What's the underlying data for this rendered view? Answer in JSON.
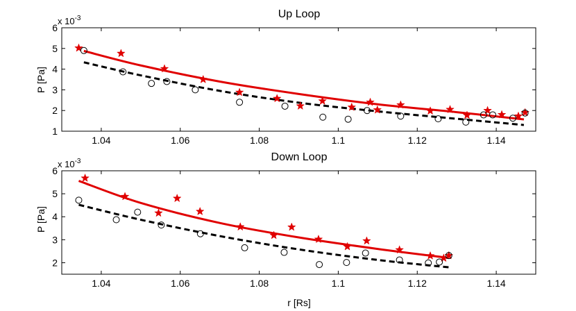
{
  "chart_data": [
    {
      "type": "scatter",
      "title": "Up Loop",
      "xlabel": "",
      "ylabel": "P [Pa]",
      "exponent_label": "x 10",
      "exponent_power": "-3",
      "xlim": [
        1.03,
        1.15
      ],
      "ylim": [
        1,
        6
      ],
      "xticks": [
        1.04,
        1.06,
        1.08,
        1.1,
        1.12,
        1.14
      ],
      "xtick_labels": [
        "1.04",
        "1.06",
        "1.08",
        "1.1",
        "1.12",
        "1.14"
      ],
      "yticks": [
        1,
        2,
        3,
        4,
        5,
        6
      ],
      "ytick_labels": [
        "1",
        "2",
        "3",
        "4",
        "5",
        "6"
      ],
      "series": [
        {
          "name": "stars",
          "marker": "star",
          "color": "#e00000",
          "points": [
            [
              1.0343,
              5.02
            ],
            [
              1.045,
              4.76
            ],
            [
              1.056,
              4.02
            ],
            [
              1.0658,
              3.5
            ],
            [
              1.075,
              2.88
            ],
            [
              1.0845,
              2.58
            ],
            [
              1.0904,
              2.22
            ],
            [
              1.096,
              2.46
            ],
            [
              1.1034,
              2.16
            ],
            [
              1.1081,
              2.4
            ],
            [
              1.1099,
              2.03
            ],
            [
              1.1158,
              2.27
            ],
            [
              1.1233,
              1.98
            ],
            [
              1.1283,
              2.05
            ],
            [
              1.1326,
              1.77
            ],
            [
              1.1378,
              2.0
            ],
            [
              1.1414,
              1.8
            ],
            [
              1.1456,
              1.73
            ],
            [
              1.1473,
              1.9
            ]
          ]
        },
        {
          "name": "circles",
          "marker": "circle",
          "color": "#000000",
          "points": [
            [
              1.0356,
              4.9
            ],
            [
              1.0455,
              3.87
            ],
            [
              1.0527,
              3.31
            ],
            [
              1.0566,
              3.4
            ],
            [
              1.0638,
              3.0
            ],
            [
              1.075,
              2.4
            ],
            [
              1.0865,
              2.21
            ],
            [
              1.0961,
              1.68
            ],
            [
              1.1025,
              1.58
            ],
            [
              1.1073,
              2.0
            ],
            [
              1.1158,
              1.73
            ],
            [
              1.1253,
              1.6
            ],
            [
              1.1323,
              1.44
            ],
            [
              1.1368,
              1.79
            ],
            [
              1.1391,
              1.79
            ],
            [
              1.1442,
              1.63
            ],
            [
              1.1473,
              1.88
            ]
          ]
        },
        {
          "name": "solid fit",
          "style": "solid",
          "color": "#e00000",
          "points": [
            [
              1.0356,
              4.88
            ],
            [
              1.05,
              4.18
            ],
            [
              1.07,
              3.4
            ],
            [
              1.09,
              2.8
            ],
            [
              1.11,
              2.3
            ],
            [
              1.13,
              1.92
            ],
            [
              1.147,
              1.57
            ]
          ]
        },
        {
          "name": "dashed fit",
          "style": "dashed",
          "color": "#000000",
          "points": [
            [
              1.0356,
              4.33
            ],
            [
              1.05,
              3.7
            ],
            [
              1.07,
              2.95
            ],
            [
              1.09,
              2.38
            ],
            [
              1.11,
              1.96
            ],
            [
              1.13,
              1.6
            ],
            [
              1.147,
              1.3
            ]
          ]
        }
      ]
    },
    {
      "type": "scatter",
      "title": "Down Loop",
      "xlabel": "r [Rs]",
      "ylabel": "P [Pa]",
      "exponent_label": "x 10",
      "exponent_power": "-3",
      "xlim": [
        1.03,
        1.15
      ],
      "ylim": [
        1.5,
        6
      ],
      "xticks": [
        1.04,
        1.06,
        1.08,
        1.1,
        1.12,
        1.14
      ],
      "xtick_labels": [
        "1.04",
        "1.06",
        "1.08",
        "1.1",
        "1.12",
        "1.14"
      ],
      "yticks": [
        2,
        3,
        4,
        5,
        6
      ],
      "ytick_labels": [
        "2",
        "3",
        "4",
        "5",
        "6"
      ],
      "series": [
        {
          "name": "stars",
          "marker": "star",
          "color": "#e00000",
          "points": [
            [
              1.0359,
              5.68
            ],
            [
              1.046,
              4.88
            ],
            [
              1.0545,
              4.16
            ],
            [
              1.0592,
              4.8
            ],
            [
              1.065,
              4.23
            ],
            [
              1.0752,
              3.56
            ],
            [
              1.0837,
              3.19
            ],
            [
              1.0882,
              3.55
            ],
            [
              1.095,
              3.02
            ],
            [
              1.1023,
              2.7
            ],
            [
              1.1072,
              2.95
            ],
            [
              1.1155,
              2.56
            ],
            [
              1.1233,
              2.3
            ],
            [
              1.1267,
              2.2
            ],
            [
              1.128,
              2.31
            ]
          ]
        },
        {
          "name": "circles",
          "marker": "circle",
          "color": "#000000",
          "points": [
            [
              1.0343,
              4.72
            ],
            [
              1.0438,
              3.87
            ],
            [
              1.0492,
              4.2
            ],
            [
              1.0552,
              3.64
            ],
            [
              1.0651,
              3.26
            ],
            [
              1.0763,
              2.65
            ],
            [
              1.0863,
              2.45
            ],
            [
              1.0952,
              1.92
            ],
            [
              1.1021,
              2.01
            ],
            [
              1.1069,
              2.42
            ],
            [
              1.1155,
              2.12
            ],
            [
              1.1228,
              1.99
            ],
            [
              1.1256,
              2.03
            ],
            [
              1.128,
              2.31
            ]
          ]
        },
        {
          "name": "solid fit",
          "style": "solid",
          "color": "#e00000",
          "points": [
            [
              1.0343,
              5.56
            ],
            [
              1.05,
              4.6
            ],
            [
              1.07,
              3.73
            ],
            [
              1.09,
              3.1
            ],
            [
              1.11,
              2.6
            ],
            [
              1.128,
              2.21
            ]
          ]
        },
        {
          "name": "dashed fit",
          "style": "dashed",
          "color": "#000000",
          "points": [
            [
              1.0343,
              4.52
            ],
            [
              1.05,
              3.87
            ],
            [
              1.07,
              3.16
            ],
            [
              1.09,
              2.58
            ],
            [
              1.11,
              2.12
            ],
            [
              1.128,
              1.8
            ]
          ]
        }
      ]
    }
  ]
}
